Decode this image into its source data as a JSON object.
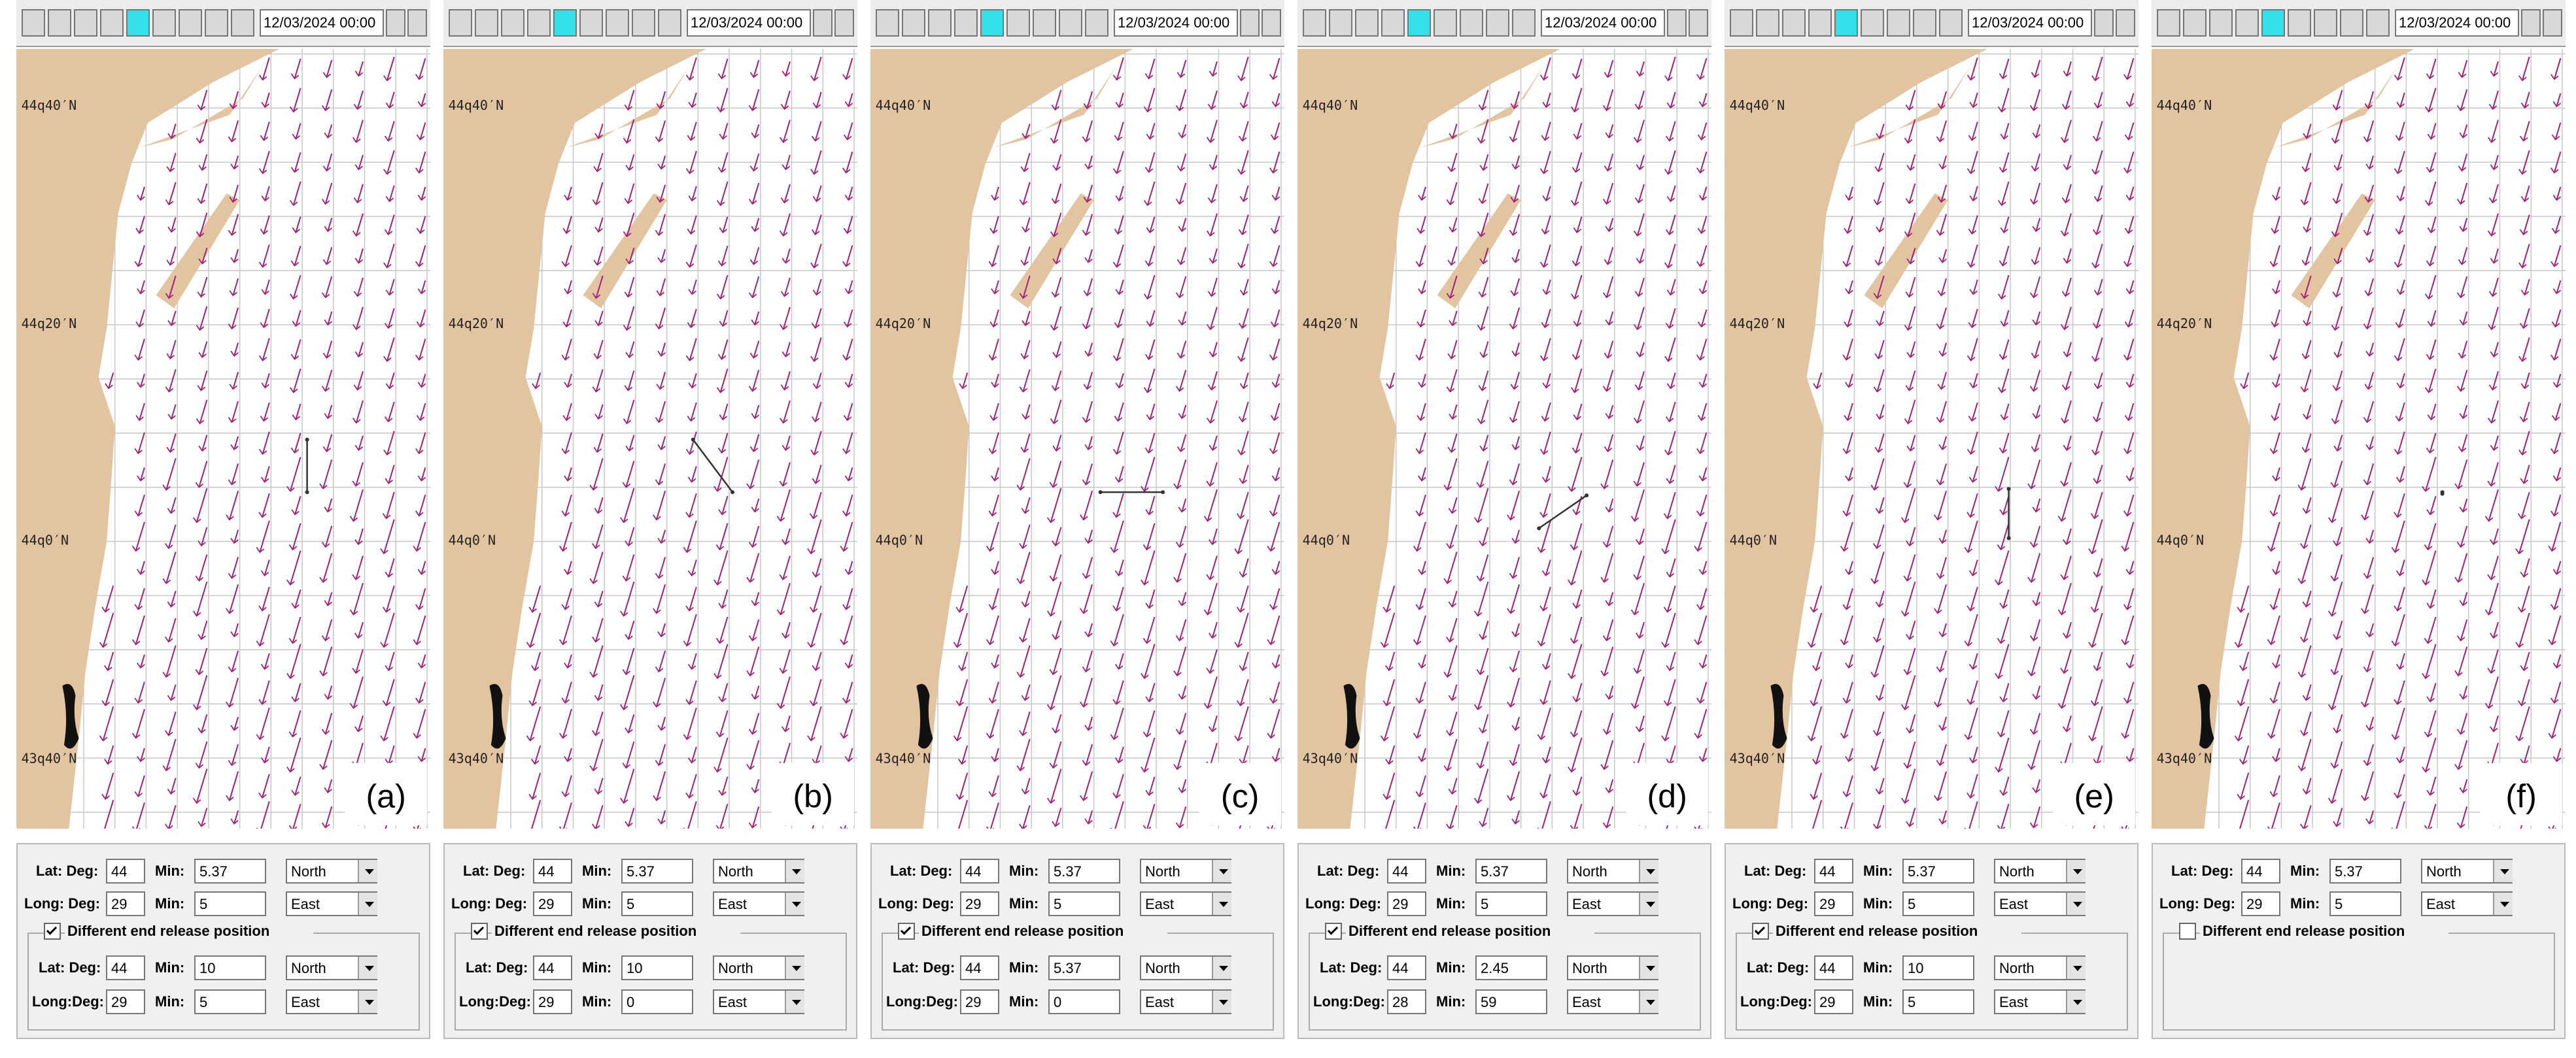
{
  "lat_labels": [
    "44q40′N",
    "44q20′N",
    "44q0′N",
    "43q40′N"
  ],
  "form_labels": {
    "lat_deg": "Lat: Deg:",
    "min": "Min:",
    "long_deg": "Long: Deg:",
    "end_lat_deg": "Lat: Deg:",
    "end_long_deg": "Long:Deg:",
    "different_end": "Different end release position"
  },
  "panels": [
    {
      "label": "(a)",
      "date": "12/03/2024 00:00",
      "start": {
        "lat_deg": 44,
        "lat_min": 5.37,
        "lat_dir": "North",
        "long_deg": 29,
        "long_min": 5,
        "long_dir": "East"
      },
      "end_checked": true,
      "end": {
        "lat_deg": 44,
        "lat_min": 10,
        "lat_dir": "North",
        "long_deg": 29,
        "long_min": 5,
        "long_dir": "East"
      }
    },
    {
      "label": "(b)",
      "date": "12/03/2024 00:00",
      "start": {
        "lat_deg": 44,
        "lat_min": 5.37,
        "lat_dir": "North",
        "long_deg": 29,
        "long_min": 5,
        "long_dir": "East"
      },
      "end_checked": true,
      "end": {
        "lat_deg": 44,
        "lat_min": 10,
        "lat_dir": "North",
        "long_deg": 29,
        "long_min": 0,
        "long_dir": "East"
      }
    },
    {
      "label": "(c)",
      "date": "12/03/2024 00:00",
      "start": {
        "lat_deg": 44,
        "lat_min": 5.37,
        "lat_dir": "North",
        "long_deg": 29,
        "long_min": 5,
        "long_dir": "East"
      },
      "end_checked": true,
      "end": {
        "lat_deg": 44,
        "lat_min": 5.37,
        "lat_dir": "North",
        "long_deg": 29,
        "long_min": 0,
        "long_dir": "East"
      }
    },
    {
      "label": "(d)",
      "date": "12/03/2024 00:00",
      "start": {
        "lat_deg": 44,
        "lat_min": 5.37,
        "lat_dir": "North",
        "long_deg": 29,
        "long_min": 5,
        "long_dir": "East"
      },
      "end_checked": true,
      "end": {
        "lat_deg": 44,
        "lat_min": 2.45,
        "lat_dir": "North",
        "long_deg": 28,
        "long_min": 59,
        "long_dir": "East"
      }
    },
    {
      "label": "(e)",
      "date": "12/03/2024 00:00",
      "start": {
        "lat_deg": 44,
        "lat_min": 5.37,
        "lat_dir": "North",
        "long_deg": 29,
        "long_min": 5,
        "long_dir": "East"
      },
      "end_checked": true,
      "end": {
        "lat_deg": 44,
        "lat_min": 10,
        "lat_dir": "North",
        "long_deg": 29,
        "long_min": 5,
        "long_dir": "East"
      }
    },
    {
      "label": "(f)",
      "date": "12/03/2024 00:00",
      "start": {
        "lat_deg": 44,
        "lat_min": 5.37,
        "lat_dir": "North",
        "long_deg": 29,
        "long_min": 5,
        "long_dir": "East"
      },
      "end_checked": false
    }
  ]
}
